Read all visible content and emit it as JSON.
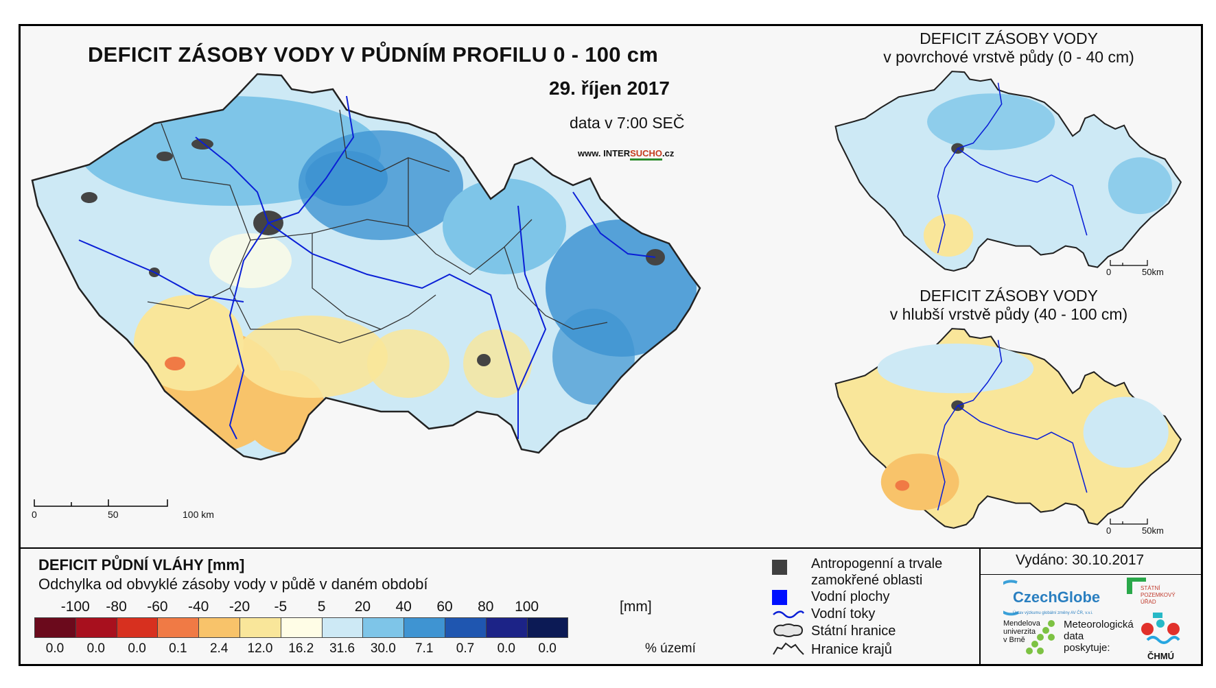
{
  "title": "DEFICIT ZÁSOBY VODY V PŮDNÍM PROFILU 0 - 100 cm",
  "date": "29. říjen 2017",
  "time": "data v 7:00 SEČ",
  "website": {
    "prefix": "www. INTER",
    "highlight": "SUCHO",
    "suffix": ".cz"
  },
  "main_scale": {
    "labels": [
      "0",
      "50",
      "100 km"
    ]
  },
  "map_top": {
    "title_line1": "DEFICIT ZÁSOBY VODY",
    "title_line2": "v povrchové vrstvě půdy (0 - 40 cm)",
    "scale": [
      "0",
      "50km"
    ]
  },
  "map_bottom": {
    "title_line1": "DEFICIT ZÁSOBY VODY",
    "title_line2": "v hlubší vrstvě půdy (40 - 100 cm)",
    "scale": [
      "0",
      "50km"
    ]
  },
  "legend": {
    "title": "DEFICIT PŮDNÍ VLÁHY [mm]",
    "subtitle": "Odchylka od obvyklé zásoby vody v půdě v daném období",
    "ticks": [
      "-100",
      "-80",
      "-60",
      "-40",
      "-20",
      "-5",
      "5",
      "20",
      "40",
      "60",
      "80",
      "100"
    ],
    "unit": "[mm]",
    "colors": [
      "#6b0a1c",
      "#a8101e",
      "#d7301f",
      "#f07a45",
      "#f8c36a",
      "#f9e69a",
      "#fffde6",
      "#cde9f5",
      "#7ec5e8",
      "#3f94d2",
      "#1f56b0",
      "#1c2387",
      "#0c1a55"
    ],
    "percentages": [
      "0.0",
      "0.0",
      "0.0",
      "0.1",
      "2.4",
      "12.0",
      "16.2",
      "31.6",
      "30.0",
      "7.1",
      "0.7",
      "0.0",
      "0.0"
    ],
    "pct_unit": "% území"
  },
  "key": {
    "urban": {
      "line1": "Antropogenní a trvale",
      "line2": "zamokřené oblasti",
      "color": "#404040"
    },
    "water": {
      "label": "Vodní plochy",
      "color": "#0010ff"
    },
    "rivers": {
      "label": "Vodní toky",
      "color": "#0a1fd6"
    },
    "border": {
      "label": "Státní hranice"
    },
    "regions": {
      "label": "Hranice krajů"
    }
  },
  "issued": "Vydáno: 30.10.2017",
  "logos": {
    "czechglobe": "CzechGlobe",
    "czechglobe_sub": "Ústav výzkumu globální změny AV ČR, v.v.i.",
    "spu": [
      "STÁTNÍ",
      "POZEMKOVÝ",
      "ÚŘAD"
    ],
    "mendel": [
      "Mendelova",
      "univerzita",
      "v Brně"
    ],
    "meteo": [
      "Meteorologická",
      "data",
      "poskytuje:"
    ],
    "chmu": "ČHMÚ"
  }
}
